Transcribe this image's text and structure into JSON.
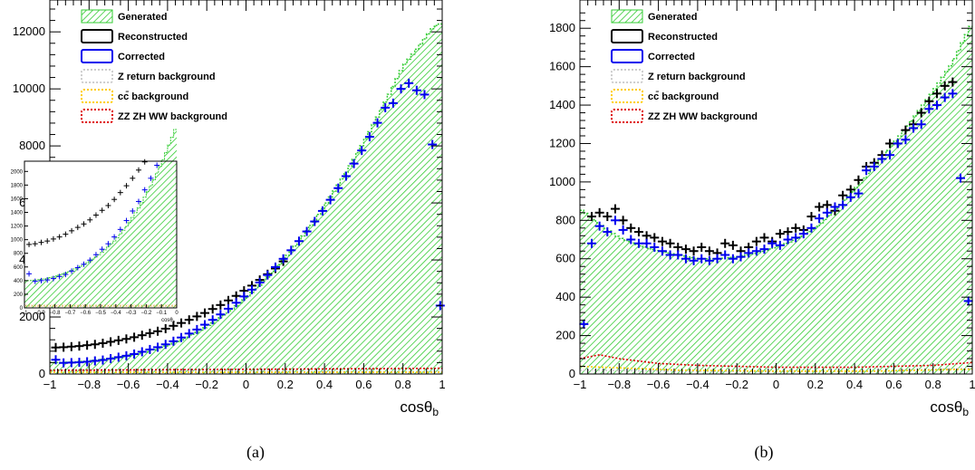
{
  "chart_data": [
    {
      "panel": "(a)",
      "type": "bar",
      "xlabel": "cosθ",
      "xlabel_sub": "b",
      "xlim": [
        -1,
        1
      ],
      "ylim": [
        0,
        12800
      ],
      "x_ticks": [
        "−1",
        "−0.8",
        "−0.6",
        "−0.4",
        "−0.2",
        "0",
        "0.2",
        "0.4",
        "0.6",
        "0.8",
        "1"
      ],
      "y_ticks": [
        "0",
        "2000",
        "4000",
        "6000",
        "8000",
        "10000",
        "12000"
      ],
      "legend": [
        "Generated",
        "Reconstructed",
        "Corrected",
        "Z return background",
        "cc̄ background",
        "ZZ ZH WW background"
      ],
      "legend_position": "top-left",
      "series": [
        {
          "name": "Generated",
          "x": [
            -0.96,
            -0.88,
            -0.8,
            -0.72,
            -0.64,
            -0.56,
            -0.48,
            -0.4,
            -0.32,
            -0.24,
            -0.16,
            -0.08,
            0,
            0.08,
            0.16,
            0.24,
            0.32,
            0.4,
            0.48,
            0.56,
            0.64,
            0.72,
            0.8,
            0.88,
            0.96,
            1.0
          ],
          "values": [
            400,
            420,
            460,
            520,
            600,
            700,
            830,
            1000,
            1220,
            1500,
            1830,
            2220,
            2670,
            3180,
            3760,
            4400,
            5110,
            5890,
            6730,
            7640,
            8620,
            9670,
            10780,
            11480,
            12200,
            12300
          ]
        },
        {
          "name": "Reconstructed",
          "x": [
            -0.97,
            -0.93,
            -0.89,
            -0.85,
            -0.81,
            -0.77,
            -0.73,
            -0.69,
            -0.65,
            -0.61,
            -0.57,
            -0.53,
            -0.49,
            -0.45,
            -0.41,
            -0.37,
            -0.33,
            -0.29,
            -0.25,
            -0.21,
            -0.17,
            -0.13,
            -0.09,
            -0.05,
            -0.01,
            0.03,
            0.07,
            0.11,
            0.15,
            0.19
          ],
          "values": [
            930,
            940,
            960,
            980,
            1010,
            1040,
            1080,
            1130,
            1180,
            1230,
            1290,
            1360,
            1430,
            1500,
            1590,
            1690,
            1790,
            1900,
            2020,
            2140,
            2280,
            2420,
            2580,
            2740,
            2920,
            3100,
            3300,
            3500,
            3700,
            3950
          ]
        },
        {
          "name": "Corrected",
          "x": [
            -0.97,
            -0.93,
            -0.89,
            -0.85,
            -0.81,
            -0.77,
            -0.73,
            -0.69,
            -0.65,
            -0.61,
            -0.57,
            -0.53,
            -0.49,
            -0.45,
            -0.41,
            -0.37,
            -0.33,
            -0.29,
            -0.25,
            -0.21,
            -0.17,
            -0.13,
            -0.09,
            -0.05,
            -0.01,
            0.03,
            0.07,
            0.11,
            0.15,
            0.19,
            0.23,
            0.27,
            0.31,
            0.35,
            0.39,
            0.43,
            0.47,
            0.51,
            0.55,
            0.59,
            0.63,
            0.67,
            0.71,
            0.75,
            0.79,
            0.83,
            0.87,
            0.91,
            0.95,
            0.99
          ],
          "values": [
            500,
            390,
            400,
            410,
            430,
            460,
            490,
            540,
            590,
            640,
            700,
            780,
            860,
            940,
            1040,
            1150,
            1280,
            1420,
            1560,
            1730,
            1900,
            2090,
            2290,
            2500,
            2720,
            2960,
            3210,
            3470,
            3750,
            4040,
            4340,
            4660,
            5000,
            5350,
            5720,
            6110,
            6520,
            6940,
            7380,
            7840,
            8320,
            8810,
            9340,
            9500,
            10000,
            10200,
            9950,
            9800,
            8050,
            2400
          ]
        },
        {
          "name": "Z return background",
          "x": [
            -1,
            1
          ],
          "values": [
            90,
            90
          ]
        },
        {
          "name": "cc̄ background",
          "x": [
            -1,
            1
          ],
          "values": [
            60,
            60
          ]
        },
        {
          "name": "ZZ ZH WW background",
          "x": [
            -1,
            1
          ],
          "values": [
            130,
            200
          ]
        }
      ],
      "inset": {
        "xlim": [
          -1,
          0
        ],
        "ylim": [
          0,
          2150
        ],
        "xlabel": "cosθ",
        "xlabel_sub": "b",
        "x_ticks": [
          "−1",
          "−0.9",
          "−0.8",
          "−0.7",
          "−0.6",
          "−0.5",
          "−0.4",
          "−0.3",
          "−0.2",
          "−0.1",
          "0"
        ],
        "y_ticks": [
          "0",
          "200",
          "400",
          "600",
          "800",
          "1000",
          "1200",
          "1400",
          "1600",
          "1800",
          "2000"
        ]
      }
    },
    {
      "panel": "(b)",
      "type": "bar",
      "xlabel": "cosθ",
      "xlabel_sub": "b",
      "xlim": [
        -1,
        1
      ],
      "ylim": [
        0,
        1900
      ],
      "x_ticks": [
        "−1",
        "−0.8",
        "−0.6",
        "−0.4",
        "−0.2",
        "0",
        "0.2",
        "0.4",
        "0.6",
        "0.8",
        "1"
      ],
      "y_ticks": [
        "0",
        "200",
        "400",
        "600",
        "800",
        "1000",
        "1200",
        "1400",
        "1600",
        "1800"
      ],
      "legend": [
        "Generated",
        "Reconstructed",
        "Corrected",
        "Z return background",
        "cc̄ background",
        "ZZ ZH WW background"
      ],
      "legend_position": "top-left",
      "series": [
        {
          "name": "Generated",
          "x": [
            -1,
            -0.9,
            -0.8,
            -0.7,
            -0.6,
            -0.5,
            -0.4,
            -0.3,
            -0.2,
            -0.1,
            0,
            0.1,
            0.2,
            0.3,
            0.4,
            0.5,
            0.6,
            0.7,
            0.8,
            0.9,
            1.0
          ],
          "values": [
            860,
            780,
            710,
            670,
            640,
            620,
            600,
            600,
            610,
            630,
            660,
            700,
            760,
            850,
            960,
            1080,
            1200,
            1330,
            1470,
            1620,
            1830
          ]
        },
        {
          "name": "Reconstructed",
          "x": [
            -0.94,
            -0.9,
            -0.86,
            -0.82,
            -0.78,
            -0.74,
            -0.7,
            -0.66,
            -0.62,
            -0.58,
            -0.54,
            -0.5,
            -0.46,
            -0.42,
            -0.38,
            -0.34,
            -0.3,
            -0.26,
            -0.22,
            -0.18,
            -0.14,
            -0.1,
            -0.06,
            -0.02,
            0.02,
            0.06,
            0.1,
            0.14,
            0.18,
            0.22,
            0.26,
            0.3,
            0.34,
            0.38,
            0.42,
            0.46,
            0.5,
            0.54,
            0.58,
            0.62,
            0.66,
            0.7,
            0.74,
            0.78,
            0.82,
            0.86,
            0.9
          ],
          "values": [
            820,
            840,
            820,
            860,
            800,
            760,
            740,
            720,
            710,
            690,
            680,
            660,
            650,
            640,
            660,
            640,
            630,
            680,
            670,
            640,
            660,
            690,
            710,
            690,
            730,
            740,
            760,
            750,
            820,
            870,
            880,
            850,
            930,
            960,
            1010,
            1080,
            1100,
            1140,
            1200,
            1200,
            1270,
            1300,
            1360,
            1420,
            1460,
            1500,
            1520
          ]
        },
        {
          "name": "Corrected",
          "x": [
            -0.98,
            -0.94,
            -0.9,
            -0.86,
            -0.82,
            -0.78,
            -0.74,
            -0.7,
            -0.66,
            -0.62,
            -0.58,
            -0.54,
            -0.5,
            -0.46,
            -0.42,
            -0.38,
            -0.34,
            -0.3,
            -0.26,
            -0.22,
            -0.18,
            -0.14,
            -0.1,
            -0.06,
            -0.02,
            0.02,
            0.06,
            0.1,
            0.14,
            0.18,
            0.22,
            0.26,
            0.3,
            0.34,
            0.38,
            0.42,
            0.46,
            0.5,
            0.54,
            0.58,
            0.62,
            0.66,
            0.7,
            0.74,
            0.78,
            0.82,
            0.86,
            0.9,
            0.94,
            0.98
          ],
          "values": [
            260,
            680,
            770,
            740,
            800,
            750,
            700,
            680,
            680,
            660,
            640,
            620,
            620,
            600,
            590,
            600,
            590,
            600,
            620,
            600,
            610,
            630,
            640,
            650,
            680,
            670,
            700,
            710,
            730,
            760,
            810,
            840,
            870,
            880,
            920,
            940,
            1060,
            1080,
            1120,
            1140,
            1200,
            1220,
            1280,
            1300,
            1380,
            1400,
            1440,
            1460,
            1020,
            380
          ]
        },
        {
          "name": "Z return background",
          "x": [
            -1,
            -0.5,
            0,
            0.5,
            1
          ],
          "values": [
            20,
            15,
            12,
            15,
            30
          ]
        },
        {
          "name": "cc̄ background",
          "x": [
            -1,
            -0.5,
            0,
            0.5,
            1
          ],
          "values": [
            40,
            20,
            15,
            15,
            25
          ]
        },
        {
          "name": "ZZ ZH WW background",
          "x": [
            -1,
            -0.9,
            -0.8,
            -0.6,
            -0.4,
            -0.2,
            0,
            0.2,
            0.4,
            0.6,
            0.8,
            1
          ],
          "values": [
            80,
            100,
            80,
            55,
            45,
            40,
            35,
            35,
            35,
            40,
            45,
            60
          ]
        }
      ]
    }
  ],
  "colors": {
    "generated": "#33cc33",
    "reconstructed": "#000000",
    "corrected": "#0000ee",
    "zreturn": "#cccccc",
    "cc": "#ffcc00",
    "zzzhww": "#dd0000"
  }
}
